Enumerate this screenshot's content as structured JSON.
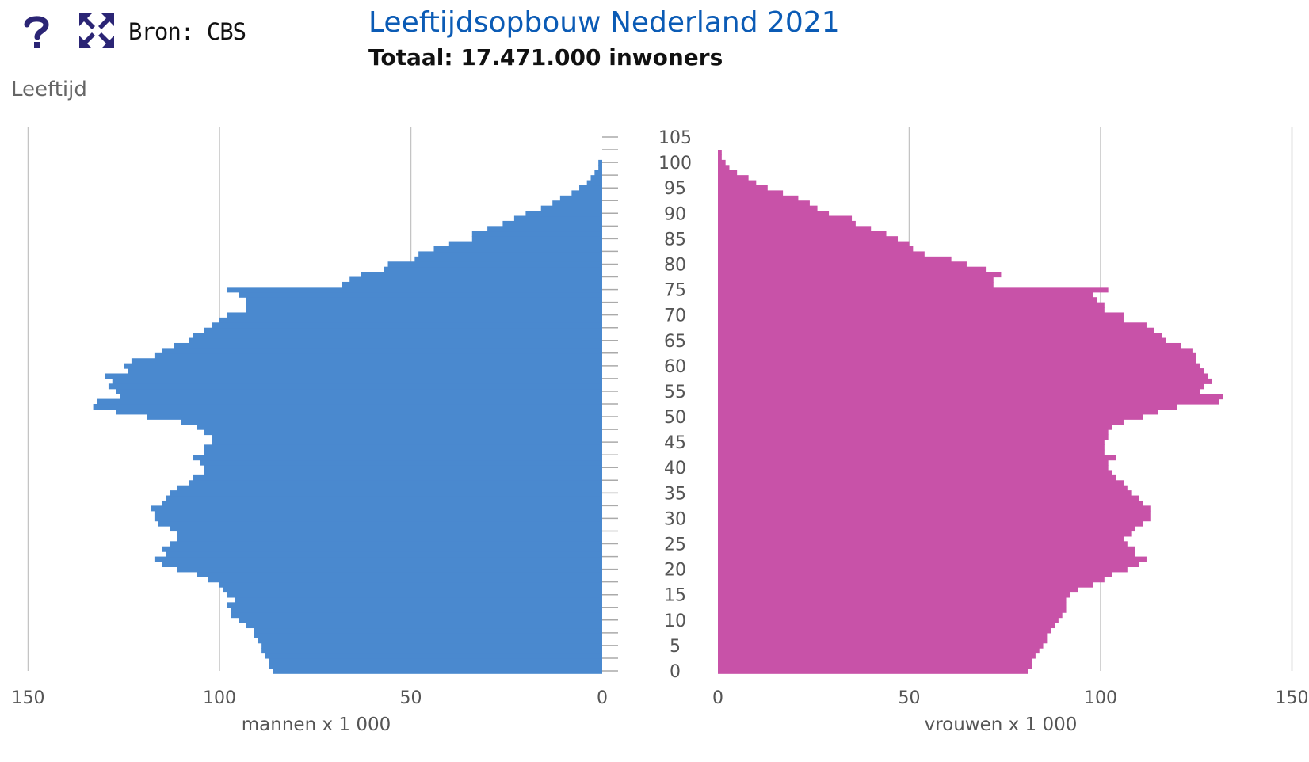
{
  "toolbar": {
    "help_icon": "question-mark-icon",
    "expand_icon": "expand-arrows-icon",
    "source": "Bron: CBS"
  },
  "colors": {
    "men": "#4a89cf",
    "women": "#c852a8",
    "title": "#0b5bb5",
    "icons": "#2b2575"
  },
  "chart_data": {
    "type": "bar",
    "orientation": "horizontal-population-pyramid",
    "title": "Leeftijdsopbouw Nederland 2021",
    "subtitle": "Totaal: 17.471.000 inwoners",
    "ylabel": "Leeftijd",
    "age_ticks": [
      "0",
      "5",
      "10",
      "15",
      "20",
      "25",
      "30",
      "35",
      "40",
      "45",
      "50",
      "55",
      "60",
      "65",
      "70",
      "75",
      "80",
      "85",
      "90",
      "95",
      "100",
      "105"
    ],
    "value_ticks": [
      "0",
      "50",
      "100",
      "150"
    ],
    "xlim": [
      0,
      150
    ],
    "grid": true,
    "series": [
      {
        "name": "mannen x 1 000",
        "side": "left",
        "ages": [
          0,
          1,
          2,
          3,
          4,
          5,
          6,
          7,
          8,
          9,
          10,
          11,
          12,
          13,
          14,
          15,
          16,
          17,
          18,
          19,
          20,
          21,
          22,
          23,
          24,
          25,
          26,
          27,
          28,
          29,
          30,
          31,
          32,
          33,
          34,
          35,
          36,
          37,
          38,
          39,
          40,
          41,
          42,
          43,
          44,
          45,
          46,
          47,
          48,
          49,
          50,
          51,
          52,
          53,
          54,
          55,
          56,
          57,
          58,
          59,
          60,
          61,
          62,
          63,
          64,
          65,
          66,
          67,
          68,
          69,
          70,
          71,
          72,
          73,
          74,
          75,
          76,
          77,
          78,
          79,
          80,
          81,
          82,
          83,
          84,
          85,
          86,
          87,
          88,
          89,
          90,
          91,
          92,
          93,
          94,
          95,
          96,
          97,
          98,
          99,
          100,
          101,
          102,
          103,
          104,
          105
        ],
        "values": [
          86,
          87,
          87,
          88,
          89,
          89,
          90,
          91,
          91,
          93,
          95,
          97,
          97,
          98,
          96,
          98,
          99,
          100,
          103,
          106,
          111,
          115,
          117,
          114,
          115,
          113,
          111,
          111,
          113,
          116,
          117,
          117,
          118,
          115,
          114,
          113,
          111,
          108,
          107,
          104,
          104,
          105,
          107,
          104,
          104,
          102,
          102,
          104,
          106,
          110,
          119,
          127,
          133,
          132,
          126,
          127,
          129,
          128,
          130,
          124,
          125,
          123,
          117,
          115,
          112,
          108,
          107,
          104,
          102,
          100,
          98,
          93,
          93,
          93,
          95,
          98,
          68,
          66,
          63,
          57,
          56,
          49,
          48,
          44,
          40,
          34,
          34,
          30,
          26,
          23,
          20,
          16,
          13,
          11,
          8,
          6,
          4,
          3,
          2,
          1,
          1,
          0,
          0,
          0,
          0,
          0
        ]
      },
      {
        "name": "vrouwen x 1 000",
        "side": "right",
        "ages": [
          0,
          1,
          2,
          3,
          4,
          5,
          6,
          7,
          8,
          9,
          10,
          11,
          12,
          13,
          14,
          15,
          16,
          17,
          18,
          19,
          20,
          21,
          22,
          23,
          24,
          25,
          26,
          27,
          28,
          29,
          30,
          31,
          32,
          33,
          34,
          35,
          36,
          37,
          38,
          39,
          40,
          41,
          42,
          43,
          44,
          45,
          46,
          47,
          48,
          49,
          50,
          51,
          52,
          53,
          54,
          55,
          56,
          57,
          58,
          59,
          60,
          61,
          62,
          63,
          64,
          65,
          66,
          67,
          68,
          69,
          70,
          71,
          72,
          73,
          74,
          75,
          76,
          77,
          78,
          79,
          80,
          81,
          82,
          83,
          84,
          85,
          86,
          87,
          88,
          89,
          90,
          91,
          92,
          93,
          94,
          95,
          96,
          97,
          98,
          99,
          100,
          101,
          102,
          103,
          104,
          105
        ],
        "values": [
          81,
          82,
          82,
          83,
          84,
          85,
          86,
          86,
          87,
          88,
          89,
          90,
          91,
          91,
          91,
          92,
          94,
          98,
          101,
          103,
          107,
          110,
          112,
          109,
          109,
          107,
          106,
          108,
          109,
          111,
          113,
          113,
          113,
          111,
          110,
          108,
          107,
          106,
          104,
          103,
          102,
          102,
          104,
          101,
          101,
          101,
          102,
          102,
          103,
          106,
          111,
          115,
          120,
          131,
          132,
          126,
          127,
          129,
          128,
          127,
          126,
          125,
          125,
          124,
          121,
          117,
          116,
          114,
          112,
          106,
          106,
          101,
          101,
          99,
          98,
          102,
          72,
          72,
          74,
          70,
          65,
          61,
          54,
          51,
          50,
          47,
          44,
          40,
          36,
          35,
          29,
          26,
          24,
          21,
          17,
          13,
          10,
          8,
          5,
          3,
          2,
          1,
          1,
          0,
          0,
          0
        ]
      }
    ]
  }
}
